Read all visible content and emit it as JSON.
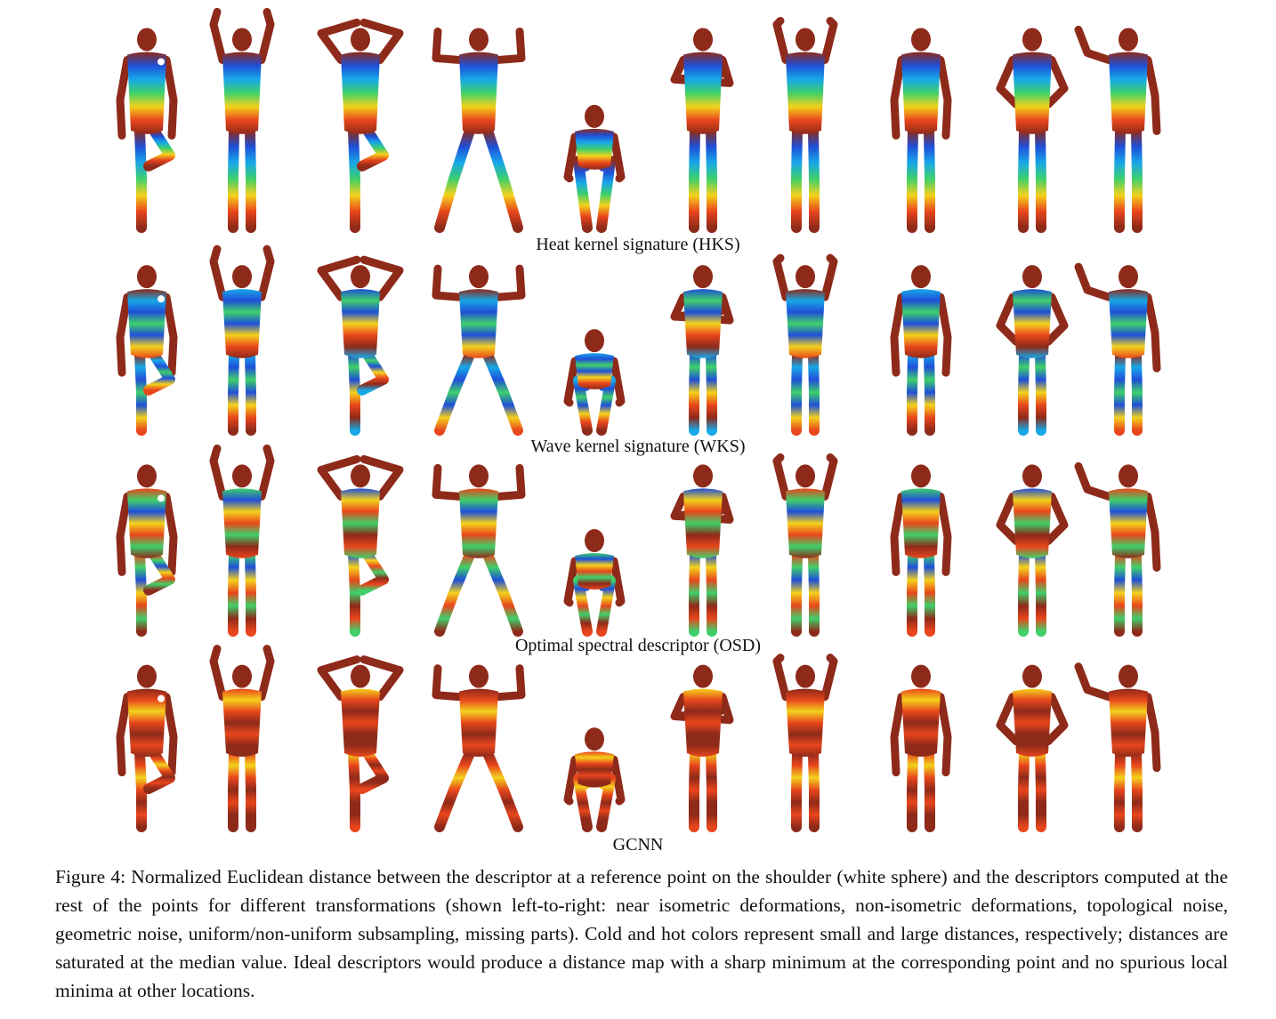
{
  "rows": [
    {
      "caption": "Heat kernel signature (HKS)",
      "scheme": "hks"
    },
    {
      "caption": "Wave kernel signature (WKS)",
      "scheme": "wks"
    },
    {
      "caption": "Optimal spectral descriptor (OSD)",
      "scheme": "osd"
    },
    {
      "caption": "GCNN",
      "scheme": "gcnn"
    }
  ],
  "figure_caption": "Figure 4: Normalized Euclidean distance between the descriptor at a reference point on the shoulder (white sphere) and the descriptors computed at the rest of the points for different transformations (shown left-to-right: near isometric deformations, non-isometric deformations, topological noise, geometric noise, uniform/non-uniform subsampling, missing parts). Cold and hot colors represent small and large distances, respectively; distances are saturated at the median value. Ideal descriptors would produce a distance map with a sharp minimum at the corresponding point and no spurious local minima at other locations.",
  "colormap": {
    "cold": "#1f4fd8",
    "cool": "#18a8e8",
    "mid": "#3fd06a",
    "warm": "#f4d21c",
    "hot": "#e8461c",
    "saturated": "#8e2a1a"
  }
}
